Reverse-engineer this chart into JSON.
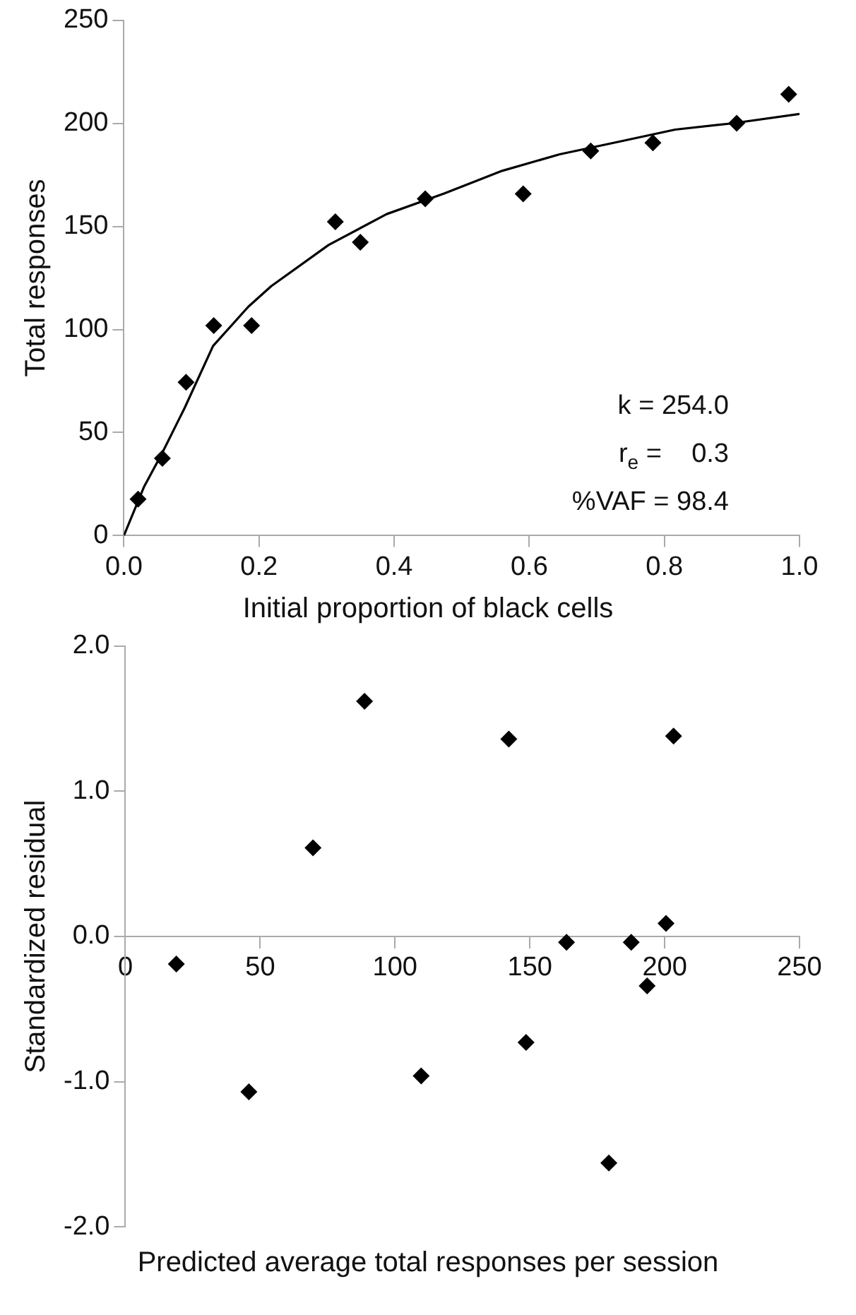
{
  "chart_data": [
    {
      "type": "scatter",
      "xlabel": "Initial proportion of black cells",
      "ylabel": "Total responses",
      "xlim": [
        0,
        1
      ],
      "ylim": [
        0,
        250
      ],
      "xticks": [
        {
          "value": 0,
          "label": "0.0"
        },
        {
          "value": 0.2,
          "label": "0.2"
        },
        {
          "value": 0.4,
          "label": "0.4"
        },
        {
          "value": 0.6,
          "label": "0.6"
        },
        {
          "value": 0.8,
          "label": "0.8"
        },
        {
          "value": 1,
          "label": "1.0"
        }
      ],
      "yticks": [
        0,
        50,
        100,
        150,
        200,
        250
      ],
      "grid": false,
      "legend": false,
      "series": [
        {
          "marker": "diamond",
          "color": "#000000",
          "x": [
            0.021,
            0.057,
            0.092,
            0.133,
            0.189,
            0.313,
            0.35,
            0.446,
            0.591,
            0.691,
            0.783,
            0.907,
            0.984
          ],
          "values": [
            17.7,
            37.5,
            74.4,
            101.9,
            101.9,
            152.3,
            142.3,
            163.4,
            165.8,
            186.6,
            190.6,
            200.1,
            214.1
          ]
        },
        {
          "type": "line",
          "marker": "none",
          "color": "#000000",
          "x": [
            0,
            0.03,
            0.056,
            0.09,
            0.132,
            0.184,
            0.218,
            0.303,
            0.389,
            0.474,
            0.56,
            0.645,
            0.731,
            0.816,
            0.9,
            1.0
          ],
          "values": [
            0,
            23.8,
            39.6,
            62,
            92,
            111,
            121,
            141,
            156,
            166,
            177,
            185,
            191,
            197,
            200,
            204.6
          ]
        }
      ],
      "annotations": [
        "k = 254.0",
        "r$_{e}$ =    0.3",
        "%VAF = 98.4"
      ]
    },
    {
      "type": "scatter",
      "xlabel": "Predicted average total responses per session",
      "ylabel": "Standardized residual",
      "xlim": [
        0,
        250
      ],
      "ylim": [
        -2,
        2
      ],
      "xticks": [
        0,
        50,
        100,
        150,
        200,
        250
      ],
      "yticks": [
        {
          "value": -2,
          "label": "-2.0"
        },
        {
          "value": -1,
          "label": "-1.0"
        },
        {
          "value": 0,
          "label": "0.0"
        },
        {
          "value": 1,
          "label": "1.0"
        },
        {
          "value": 2,
          "label": "2.0"
        }
      ],
      "grid": false,
      "legend": false,
      "series": [
        {
          "marker": "diamond",
          "color": "#000000",
          "x": [
            18.9,
            45.8,
            69.6,
            88.7,
            109.7,
            142.2,
            148.6,
            163.6,
            179.3,
            187.6,
            193.5,
            200.5,
            203.3
          ],
          "values": [
            -0.19,
            -1.07,
            0.61,
            1.62,
            -0.96,
            1.36,
            -0.73,
            -0.04,
            -1.56,
            -0.04,
            -0.34,
            0.09,
            1.38
          ]
        }
      ]
    }
  ]
}
